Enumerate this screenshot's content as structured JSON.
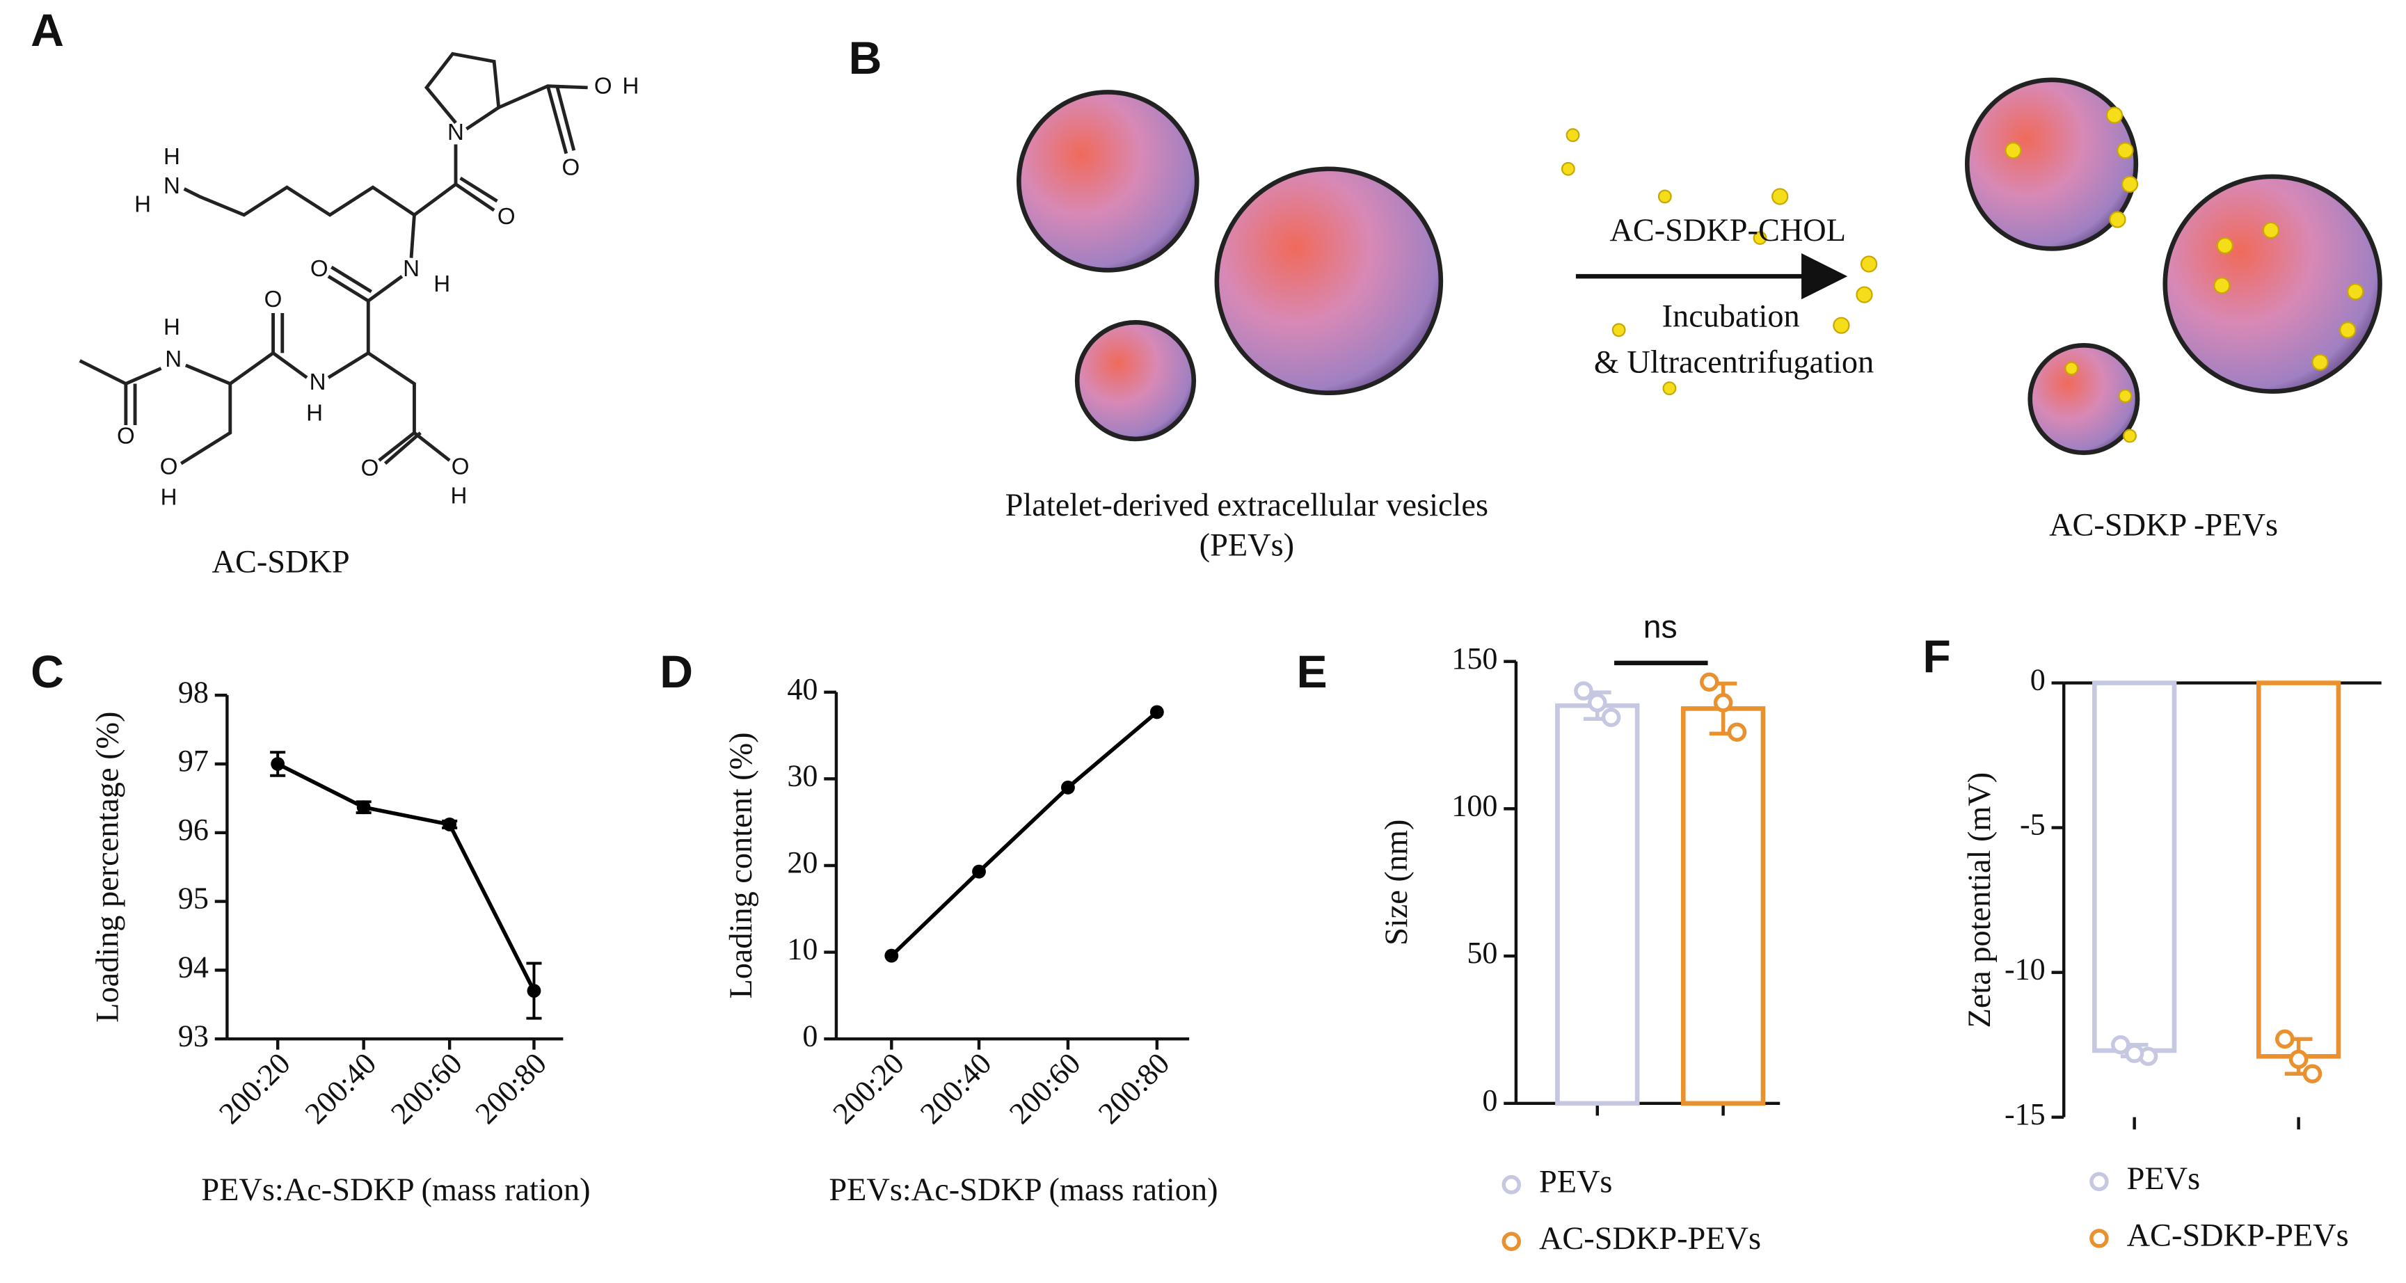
{
  "panel_labels": [
    "A",
    "B",
    "C",
    "D",
    "E",
    "F"
  ],
  "structure": {
    "name": "AC-SDKP",
    "atoms": [
      "O",
      "H",
      "O",
      "N",
      "O",
      "H",
      "N",
      "H",
      "N",
      "H",
      "O",
      "O",
      "H",
      "N",
      "N",
      "H",
      "O",
      "O",
      "H",
      "O",
      "O",
      "H"
    ]
  },
  "scheme": {
    "reagent": "AC-SDKP-CHOL",
    "step1": "Incubation",
    "step2": "& Ultracentrifugation",
    "input_label": "Platelet-derived extracellular vesicles (PEVs)",
    "output_label": "AC-SDKP -PEVs"
  },
  "chart_data": [
    {
      "type": "line",
      "ylabel": "Loading percentage (%)",
      "xlabel": "PEVs:Ac-SDKP (mass ration)",
      "categories": [
        "200:20",
        "200:40",
        "200:60",
        "200:80"
      ],
      "series": [
        {
          "color": "#000000",
          "values": [
            97.0,
            96.37,
            96.12,
            93.7
          ],
          "errors": [
            0.17,
            0.08,
            0.05,
            0.4
          ]
        }
      ],
      "ylim": [
        93,
        98
      ],
      "yticks": [
        93,
        94,
        95,
        96,
        97,
        98
      ]
    },
    {
      "type": "line",
      "ylabel": "Loading content (%)",
      "xlabel": "PEVs:Ac-SDKP (mass ration)",
      "categories": [
        "200:20",
        "200:40",
        "200:60",
        "200:80"
      ],
      "series": [
        {
          "color": "#000000",
          "values": [
            9.6,
            19.3,
            29.0,
            37.7
          ]
        }
      ],
      "ylim": [
        0,
        40
      ],
      "yticks": [
        0,
        10,
        20,
        30,
        40
      ]
    },
    {
      "type": "bar",
      "ylabel": "Size (nm)",
      "annotation": "ns",
      "series": [
        {
          "name": "PEVs",
          "color": "#c5c8e0",
          "value": 135,
          "error": 4.5,
          "points": [
            140,
            131,
            136
          ]
        },
        {
          "name": "AC-SDKP-PEVs",
          "color": "#e8912e",
          "value": 134,
          "error": 8.5,
          "points": [
            143,
            126,
            136
          ]
        }
      ],
      "ylim": [
        0,
        150
      ],
      "yticks": [
        0,
        50,
        100,
        150
      ]
    },
    {
      "type": "bar",
      "ylabel": "Zeta potential (mV)",
      "series": [
        {
          "name": "PEVs",
          "color": "#c5c8e0",
          "value": -12.7,
          "error": 0.2,
          "points": [
            -12.5,
            -12.9,
            -12.8
          ]
        },
        {
          "name": "AC-SDKP-PEVs",
          "color": "#e8912e",
          "value": -12.9,
          "error": 0.6,
          "points": [
            -12.3,
            -13.5,
            -13.0
          ]
        }
      ],
      "ylim": [
        -15,
        0
      ],
      "yticks": [
        -15,
        -10,
        -5,
        0
      ]
    }
  ]
}
